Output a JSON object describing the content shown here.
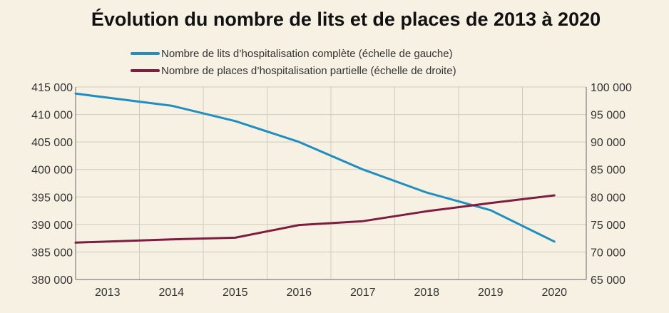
{
  "chart_data": {
    "type": "line",
    "title": "Évolution du nombre de lits et de places de 2013 à 2020",
    "categories": [
      "2013",
      "2014",
      "2015",
      "2016",
      "2017",
      "2018",
      "2019",
      "2020"
    ],
    "series": [
      {
        "name": "Nombre de lits d’hospitalisation complète (échelle de gauche)",
        "axis": "left",
        "color": "#1f8fbf",
        "values": [
          413800,
          411600,
          408800,
          405000,
          400000,
          395800,
          392600,
          386900
        ]
      },
      {
        "name": "Nombre de places d’hospitalisation partielle (échelle de droite)",
        "axis": "right",
        "color": "#7d1d3f",
        "values": [
          71700,
          72300,
          72600,
          74900,
          75600,
          77400,
          78900,
          80300
        ]
      }
    ],
    "y_left": {
      "min": 380000,
      "max": 415000,
      "ticks": [
        "380 000",
        "385 000",
        "390 000",
        "395 000",
        "400 000",
        "405 000",
        "410 000",
        "415 000"
      ]
    },
    "y_right": {
      "min": 65000,
      "max": 100000,
      "ticks": [
        "65 000",
        "70 000",
        "75 000",
        "80 000",
        "85 000",
        "90 000",
        "95 000",
        "100 000"
      ]
    },
    "grid": true,
    "legend_position": "top",
    "colors": {
      "background": "#f7f1e4",
      "grid": "#cfcabd",
      "axis": "#666666"
    }
  }
}
